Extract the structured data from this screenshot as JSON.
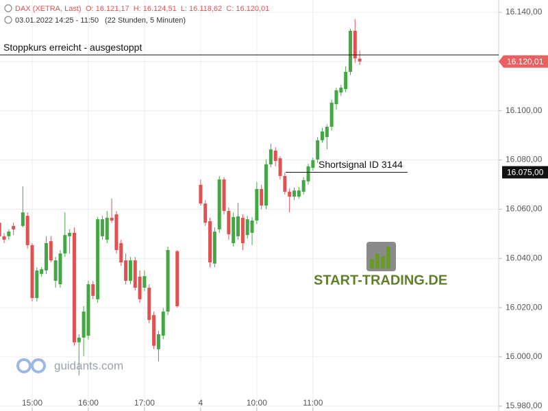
{
  "chart_data": {
    "type": "candlestick",
    "header": {
      "instrument": "DAX (XETRA, Last)",
      "ohlc": "O: 16.121,17  H: 16.124,51  L: 16.118,62  C: 16.120,01",
      "range": "03.01.2022 14:25 - 11:50",
      "duration": "(22 Stunden, 5 Minuten)"
    },
    "brand": "START-TRADING.DE",
    "watermark": "guidants.com",
    "up_color": "#43a843",
    "down_color": "#e05252",
    "grid": true,
    "xlim": [
      0.12,
      106.7
    ],
    "ylim": [
      15978,
      16145
    ],
    "xticks": [
      {
        "value": 7,
        "label": "15:00"
      },
      {
        "value": 19,
        "label": "16:00"
      },
      {
        "value": 31,
        "label": "17:00"
      },
      {
        "value": 43,
        "label": "4"
      },
      {
        "value": 55,
        "label": "10:00"
      },
      {
        "value": 67,
        "label": "11:00"
      }
    ],
    "yticks": [
      {
        "value": 15980,
        "label": "15.980,00"
      },
      {
        "value": 16000,
        "label": "16.000,00"
      },
      {
        "value": 16020,
        "label": "16.020,00"
      },
      {
        "value": 16040,
        "label": "16.040,00"
      },
      {
        "value": 16060,
        "label": "16.060,00"
      },
      {
        "value": 16080,
        "label": "16.080,00"
      },
      {
        "value": 16100,
        "label": "16.100,00"
      },
      {
        "value": 16120,
        "label": "16.120,00"
      },
      {
        "value": 16140,
        "label": "16.140,00"
      }
    ],
    "x": [
      0,
      1,
      2,
      3,
      5,
      6,
      7,
      8,
      9,
      10,
      11,
      12,
      13,
      14,
      15,
      16,
      17,
      18,
      19,
      20,
      21,
      22,
      23,
      24,
      25,
      26,
      27,
      28,
      29,
      30,
      31,
      32,
      33,
      34,
      35,
      36,
      38,
      43,
      44,
      45,
      46,
      47,
      48,
      49,
      50,
      51,
      52,
      53,
      54,
      55,
      56,
      57,
      58,
      59,
      60,
      61,
      62,
      63,
      64,
      65,
      66,
      67,
      68,
      69,
      70,
      71,
      72,
      73,
      74,
      75,
      76,
      77
    ],
    "open": [
      16054.5,
      16049.0,
      16049.0,
      16053.2,
      16053.2,
      16057.3,
      16045.4,
      16023.9,
      16033.7,
      16035.1,
      16047.0,
      16030.9,
      16029.5,
      16042.0,
      16049.0,
      16050.4,
      16005.9,
      16007.8,
      16008.6,
      16029.5,
      16023.4,
      16049.0,
      16047.6,
      16056.5,
      16057.9,
      16046.2,
      16039.2,
      16030.9,
      16039.2,
      16032.6,
      16028.1,
      16028.1,
      16017.0,
      16003.1,
      16008.6,
      16018.4,
      16042.9,
      16069.9,
      16062.3,
      16055.1,
      16037.9,
      16051.8,
      16072.1,
      16059.3,
      16046.2,
      16049.0,
      16056.5,
      16049.5,
      16050.4,
      16055.4,
      16068.2,
      16061.5,
      16078.2,
      16083.8,
      16080.7,
      16073.5,
      16067.1,
      16065.1,
      16065.1,
      16067.1,
      16071.3,
      16076.8,
      16080.2,
      16088.0,
      16089.3,
      16093.5,
      16102.7,
      16107.4,
      16108.8,
      16115.8,
      16132.5,
      16121.17
    ],
    "high": [
      16055.9,
      16050.4,
      16051.8,
      16054.5,
      16069.3,
      16058.7,
      16046.2,
      16036.4,
      16036.4,
      16049.0,
      16049.0,
      16040.6,
      16043.4,
      16058.7,
      16051.8,
      16052.6,
      16009.2,
      16020.6,
      16031.0,
      16030.9,
      16056.8,
      16057.3,
      16059.3,
      16064.3,
      16059.3,
      16047.6,
      16042.0,
      16040.6,
      16040.6,
      16035.1,
      16035.1,
      16029.5,
      16018.4,
      16010.6,
      16019.8,
      16044.8,
      16043.4,
      16072.1,
      16063.7,
      16056.5,
      16052.6,
      16073.5,
      16073.0,
      16060.7,
      16058.7,
      16062.5,
      16057.9,
      16057.3,
      16056.8,
      16071.0,
      16069.9,
      16080.2,
      16086.6,
      16085.2,
      16081.5,
      16075.0,
      16068.5,
      16068.8,
      16069.0,
      16073.0,
      16078.5,
      16081.0,
      16089.3,
      16093.0,
      16094.5,
      16104.5,
      16109.4,
      16110.5,
      16118.0,
      16133.3,
      16137.2,
      16124.51
    ],
    "low": [
      16047.6,
      16046.2,
      16047.6,
      16049.5,
      16052.6,
      16044.0,
      16022.5,
      16022.5,
      16032.5,
      16033.7,
      16038.4,
      16028.1,
      16028.1,
      16040.6,
      16042.0,
      16004.5,
      15992.5,
      16000.3,
      16007.0,
      16023.4,
      16022.0,
      16047.6,
      16046.2,
      16054.5,
      16042.0,
      16037.0,
      16029.5,
      16029.5,
      16027.0,
      16022.0,
      16026.7,
      16013.6,
      16003.1,
      15998.1,
      16007.2,
      16017.0,
      16020.0,
      16061.5,
      16053.2,
      16036.4,
      16036.4,
      16050.4,
      16057.9,
      16047.6,
      16044.8,
      16047.6,
      16043.4,
      16048.0,
      16045.4,
      16054.0,
      16060.0,
      16060.0,
      16077.0,
      16077.4,
      16072.1,
      16066.0,
      16058.7,
      16063.7,
      16064.3,
      16066.0,
      16070.0,
      16075.7,
      16078.8,
      16087.0,
      16084.3,
      16092.0,
      16100.5,
      16106.0,
      16107.5,
      16114.5,
      16119.5,
      16118.62
    ],
    "close": [
      16049.0,
      16047.6,
      16050.9,
      16051.8,
      16058.7,
      16045.4,
      16023.9,
      16035.1,
      16035.6,
      16046.2,
      16039.2,
      16039.2,
      16042.0,
      16049.5,
      16050.4,
      16005.9,
      16007.8,
      16018.4,
      16029.5,
      16024.8,
      16055.9,
      16055.9,
      16056.5,
      16055.4,
      16043.4,
      16038.4,
      16030.9,
      16039.2,
      16028.1,
      16023.4,
      16032.8,
      16015.0,
      16004.5,
      16009.2,
      16018.4,
      16043.4,
      16020.6,
      16062.3,
      16054.5,
      16038.4,
      16050.9,
      16072.1,
      16059.3,
      16049.8,
      16056.8,
      16057.1,
      16046.2,
      16055.9,
      16055.4,
      16068.2,
      16061.5,
      16078.2,
      16084.3,
      16079.6,
      16073.5,
      16067.1,
      16065.1,
      16067.6,
      16067.6,
      16071.8,
      16077.4,
      16079.9,
      16088.0,
      16091.6,
      16093.5,
      16103.3,
      16108.3,
      16109.4,
      16115.8,
      16132.5,
      16121.3,
      16120.01
    ],
    "annotations": [
      {
        "text": "Stoppkurs erreicht - ausgestoppt",
        "value": 16122.7
      },
      {
        "text": "Shortsignal ID 3144",
        "value": 16075,
        "value_label": "16.075,00"
      }
    ],
    "last_price": {
      "value": 16120.01,
      "label": "16.120,01"
    }
  }
}
